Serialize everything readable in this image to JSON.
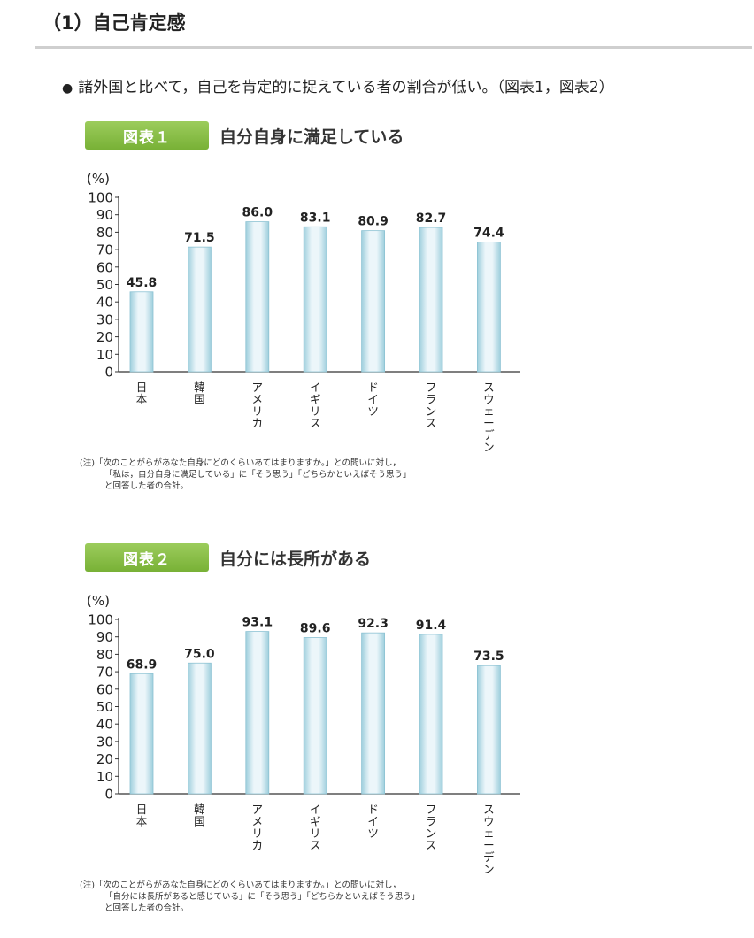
{
  "section": {
    "title": "（1）自己肯定感"
  },
  "bullet": {
    "marker": "●",
    "text": "諸外国と比べて，自己を肯定的に捉えている者の割合が低い。（図表1，図表2）"
  },
  "colors": {
    "badge": "#86bd45",
    "bar_light": "#ecf6fa",
    "bar_dark": "#9fcfdd",
    "axis": "#333333"
  },
  "chart_data": [
    {
      "type": "bar",
      "figure_label": "図表１",
      "title": "自分自身に満足している",
      "unit_label": "(%)",
      "categories": [
        "日本",
        "韓国",
        "アメリカ",
        "イギリス",
        "ドイツ",
        "フランス",
        "スウェーデン"
      ],
      "values": [
        45.8,
        71.5,
        86.0,
        83.1,
        80.9,
        82.7,
        74.4
      ],
      "value_labels": [
        "45.8",
        "71.5",
        "86.0",
        "83.1",
        "80.9",
        "82.7",
        "74.4"
      ],
      "yticks": [
        "0",
        "10",
        "20",
        "30",
        "40",
        "50",
        "60",
        "70",
        "80",
        "90",
        "100"
      ],
      "ylim": [
        0,
        100
      ],
      "grid": false,
      "note": {
        "line1": "(注)「次のことがらがあなた自身にどのくらいあてはまりますか。」との問いに対し，",
        "line2": "「私は，自分自身に満足している」に「そう思う」「どちらかといえばそう思う」",
        "line3": "と回答した者の合計。"
      }
    },
    {
      "type": "bar",
      "figure_label": "図表２",
      "title": "自分には長所がある",
      "unit_label": "(%)",
      "categories": [
        "日本",
        "韓国",
        "アメリカ",
        "イギリス",
        "ドイツ",
        "フランス",
        "スウェーデン"
      ],
      "values": [
        68.9,
        75.0,
        93.1,
        89.6,
        92.3,
        91.4,
        73.5
      ],
      "value_labels": [
        "68.9",
        "75.0",
        "93.1",
        "89.6",
        "92.3",
        "91.4",
        "73.5"
      ],
      "yticks": [
        "0",
        "10",
        "20",
        "30",
        "40",
        "50",
        "60",
        "70",
        "80",
        "90",
        "100"
      ],
      "ylim": [
        0,
        100
      ],
      "grid": false,
      "note": {
        "line1": "(注)「次のことがらがあなた自身にどのくらいあてはまりますか。」との問いに対し，",
        "line2": "「自分には長所があると感じている」に「そう思う」「どちらかといえばそう思う」",
        "line3": "と回答した者の合計。"
      }
    }
  ]
}
